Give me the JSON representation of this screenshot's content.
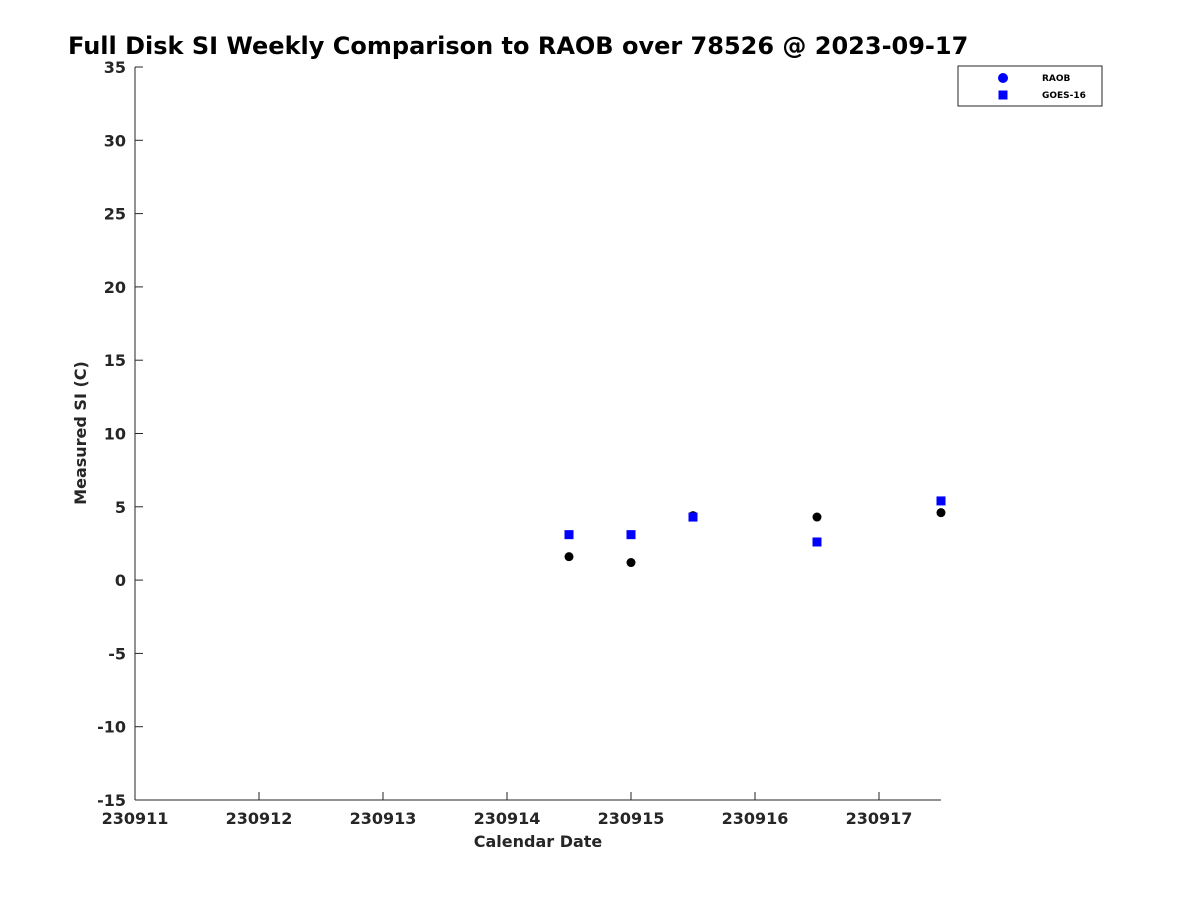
{
  "chart_data": {
    "type": "scatter",
    "title": "Full Disk SI Weekly Comparison to RAOB over 78526 @ 2023-09-17",
    "xlabel": "Calendar Date",
    "ylabel": "Measured SI (C)",
    "xlim": [
      "2023-09-11",
      "2023-09-17 12:00"
    ],
    "ylim": [
      -15,
      35
    ],
    "x_ticks": [
      "230911",
      "230912",
      "230913",
      "230914",
      "230915",
      "230916",
      "230917"
    ],
    "y_ticks": [
      "-15",
      "-10",
      "-5",
      "0",
      "5",
      "10",
      "15",
      "20",
      "25",
      "30",
      "35"
    ],
    "grid": false,
    "legend_position": "top-right",
    "series": [
      {
        "name": "RAOB",
        "marker": "circle",
        "legend_color": "#0000ff",
        "point_color": "#000000",
        "points": [
          {
            "x": "2023-09-14 12:00",
            "y": 1.6
          },
          {
            "x": "2023-09-15 00:00",
            "y": 1.2
          },
          {
            "x": "2023-09-15 12:00",
            "y": 4.4
          },
          {
            "x": "2023-09-16 12:00",
            "y": 4.3
          },
          {
            "x": "2023-09-17 12:00",
            "y": 4.6
          }
        ]
      },
      {
        "name": "GOES-16",
        "marker": "square",
        "legend_color": "#0000ff",
        "point_color": "#0000ff",
        "points": [
          {
            "x": "2023-09-14 12:00",
            "y": 3.1
          },
          {
            "x": "2023-09-15 00:00",
            "y": 3.1
          },
          {
            "x": "2023-09-15 12:00",
            "y": 4.3
          },
          {
            "x": "2023-09-16 12:00",
            "y": 2.6
          },
          {
            "x": "2023-09-17 12:00",
            "y": 5.4
          }
        ]
      }
    ]
  }
}
